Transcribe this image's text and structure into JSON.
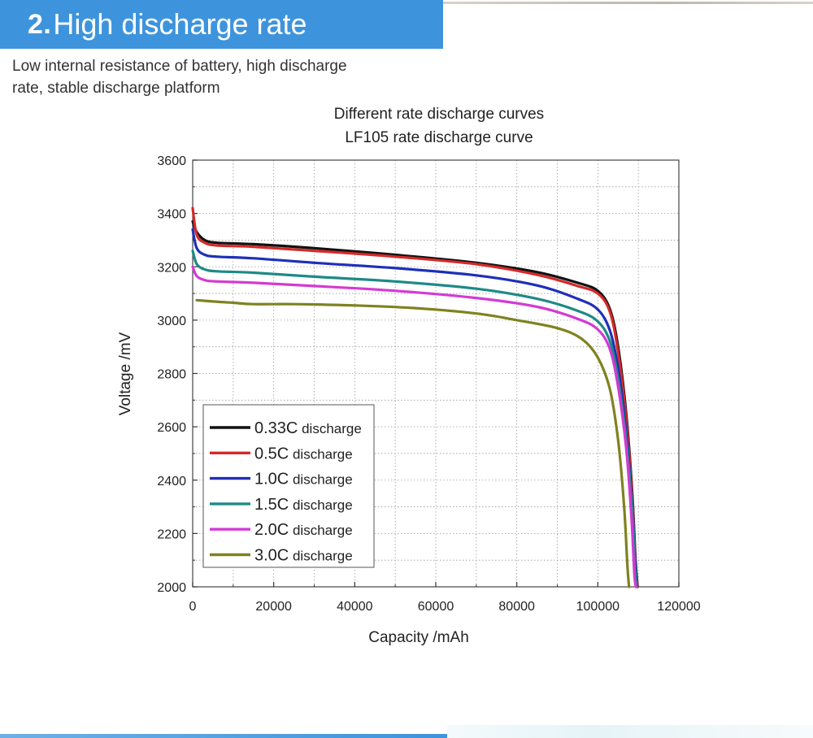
{
  "header": {
    "number": "2.",
    "title": "High discharge rate"
  },
  "description": "Low internal resistance of battery, high discharge rate, stable discharge platform",
  "colors": {
    "banner": "#3d94dd",
    "banner_text": "#ffffff"
  },
  "chart_data": {
    "type": "line",
    "title": "Different rate discharge curves",
    "subtitle": "LF105 rate discharge curve",
    "xlabel": "Capacity /mAh",
    "ylabel": "Voltage /mV",
    "xlim": [
      0,
      120000
    ],
    "ylim": [
      2000,
      3600
    ],
    "xticks": [
      "0",
      "20000",
      "40000",
      "60000",
      "80000",
      "100000",
      "120000"
    ],
    "yticks": [
      "2000",
      "2200",
      "2400",
      "2600",
      "2800",
      "3000",
      "3200",
      "3400",
      "3600"
    ],
    "grid": true,
    "legend_position": "bottom-left",
    "series": [
      {
        "name": "0.33C discharge",
        "rate": "0.33C",
        "suffix": "discharge",
        "color": "#111111",
        "x": [
          0,
          1000,
          3000,
          6000,
          15000,
          30000,
          50000,
          70000,
          85000,
          95000,
          100000,
          103000,
          105000,
          107000,
          108500,
          109300,
          109800
        ],
        "y": [
          3370,
          3330,
          3300,
          3290,
          3285,
          3270,
          3245,
          3215,
          3180,
          3140,
          3110,
          3040,
          2900,
          2650,
          2350,
          2100,
          2000
        ]
      },
      {
        "name": "0.5C discharge",
        "rate": "0.5C",
        "suffix": "discharge",
        "color": "#d42a2a",
        "x": [
          0,
          1000,
          3000,
          6000,
          15000,
          30000,
          50000,
          70000,
          85000,
          95000,
          100000,
          103000,
          105000,
          107000,
          108500,
          109300,
          109800
        ],
        "y": [
          3420,
          3320,
          3290,
          3280,
          3275,
          3260,
          3238,
          3210,
          3170,
          3128,
          3100,
          3030,
          2880,
          2630,
          2330,
          2080,
          2000
        ]
      },
      {
        "name": "1.0C discharge",
        "rate": "1.0C",
        "suffix": "discharge",
        "color": "#1f2fb8",
        "x": [
          0,
          1000,
          3000,
          6000,
          15000,
          30000,
          50000,
          70000,
          85000,
          95000,
          100000,
          103000,
          105000,
          107000,
          108500,
          109300,
          109700
        ],
        "y": [
          3340,
          3270,
          3245,
          3238,
          3232,
          3215,
          3195,
          3168,
          3130,
          3080,
          3040,
          2960,
          2820,
          2580,
          2300,
          2070,
          2000
        ]
      },
      {
        "name": "1.5C discharge",
        "rate": "1.5C",
        "suffix": "discharge",
        "color": "#1e8a86",
        "x": [
          0,
          1000,
          3000,
          6000,
          15000,
          30000,
          50000,
          70000,
          85000,
          95000,
          100000,
          103000,
          105000,
          107000,
          108500,
          109200,
          109600
        ],
        "y": [
          3260,
          3210,
          3190,
          3183,
          3178,
          3163,
          3145,
          3118,
          3080,
          3035,
          2995,
          2920,
          2780,
          2550,
          2280,
          2060,
          2000
        ]
      },
      {
        "name": "2.0C discharge",
        "rate": "2.0C",
        "suffix": "discharge",
        "color": "#d43ad4",
        "x": [
          0,
          1000,
          3000,
          6000,
          15000,
          30000,
          50000,
          70000,
          85000,
          95000,
          100000,
          103000,
          105000,
          107000,
          108300,
          109000,
          109400
        ],
        "y": [
          3200,
          3165,
          3150,
          3145,
          3140,
          3128,
          3110,
          3083,
          3050,
          3005,
          2965,
          2890,
          2750,
          2520,
          2260,
          2050,
          2000
        ]
      },
      {
        "name": "3.0C discharge",
        "rate": "3.0C",
        "suffix": "discharge",
        "color": "#7f8220",
        "x": [
          1000,
          5000,
          10000,
          15000,
          25000,
          40000,
          55000,
          70000,
          80000,
          90000,
          96000,
          100000,
          103000,
          105000,
          106500,
          107300,
          107700
        ],
        "y": [
          3075,
          3070,
          3065,
          3060,
          3060,
          3055,
          3045,
          3025,
          3000,
          2970,
          2930,
          2860,
          2740,
          2550,
          2300,
          2080,
          2000
        ]
      }
    ]
  }
}
